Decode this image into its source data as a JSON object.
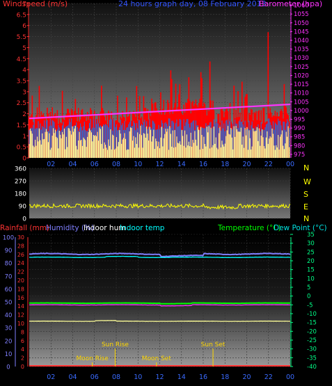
{
  "header": {
    "windspeed_label": "Windspeed (m/s)",
    "title": "24 hours graph day, 08 February 2013",
    "barometer_label": "Barometer (hpa)"
  },
  "bottom_header": {
    "rainfall": "Rainfall (mm)",
    "humidity": "Humidity (%)",
    "indoor_hum": "Indoor hum",
    "indoor_temp": "Indoor temp",
    "temperature": "Temperature (°C)",
    "dew_point": "Dew Point (°C)"
  },
  "colors": {
    "wind_red": "#ff0000",
    "wind_avg": "#ffff99",
    "wind_blue": "#3366cc",
    "barometer": "#ff33ff",
    "direction": "#ffff00",
    "humidity": "#8080ff",
    "indoor_hum": "#ffffff",
    "indoor_temp": "#00ffff",
    "temperature": "#00ff00",
    "dew_point": "#00e0e0",
    "rain": "#ff3333"
  },
  "chart_data": [
    {
      "type": "line",
      "name": "wind-barometer",
      "x_ticks": [
        "02",
        "04",
        "06",
        "08",
        "10",
        "12",
        "14",
        "16",
        "18",
        "20",
        "22",
        "00"
      ],
      "y_left_ticks": [
        "0",
        "0.5",
        "1",
        "1.5",
        "2",
        "2.5",
        "3",
        "3.5",
        "4",
        "4.5",
        "5",
        "5.5",
        "6",
        "6.5",
        "7"
      ],
      "y_left_range": [
        0,
        7
      ],
      "y_right_ticks": [
        "975",
        "980",
        "985",
        "990",
        "995",
        "1000",
        "1005",
        "1010",
        "1015",
        "1020",
        "1025",
        "1030",
        "1035",
        "1040",
        "1045",
        "1050",
        "1055",
        "1060"
      ],
      "y_right_range": [
        973,
        1061
      ],
      "barometer_start": 995.5,
      "barometer_end": 1003.5,
      "gust_level_typical": 1.9,
      "average_level_typical": 0.8,
      "peak_gust": 5.7
    },
    {
      "type": "line",
      "name": "wind-direction",
      "x_ticks": [
        "02",
        "04",
        "06",
        "08",
        "10",
        "12",
        "14",
        "16",
        "18",
        "20",
        "22",
        "00"
      ],
      "y_ticks": [
        "0",
        "90",
        "180",
        "270",
        "360"
      ],
      "y_range": [
        0,
        360
      ],
      "compass": [
        "N",
        "W",
        "S",
        "E",
        "N"
      ],
      "direction_typical": 90
    },
    {
      "type": "line",
      "name": "temperature-humidity",
      "x_ticks": [
        "02",
        "04",
        "06",
        "08",
        "10",
        "12",
        "14",
        "16",
        "18",
        "20",
        "22",
        "00"
      ],
      "y_left_ticks": [
        "0",
        "10",
        "20",
        "30",
        "40",
        "50",
        "60",
        "70",
        "80",
        "90",
        "100"
      ],
      "y_rain_ticks": [
        "0",
        "2",
        "4",
        "6",
        "8",
        "10",
        "12",
        "14",
        "16",
        "18",
        "20",
        "22",
        "24",
        "26",
        "28",
        "30"
      ],
      "y_right_ticks": [
        "-40",
        "-35",
        "-30",
        "-25",
        "-20",
        "-15",
        "-10",
        "-5",
        "0",
        "5",
        "10",
        "15",
        "20",
        "25",
        "30",
        "35"
      ],
      "y_right_range": [
        -40,
        35
      ],
      "humidity_level": 87,
      "indoor_hum_level": 35,
      "indoor_temp_level": 22,
      "temperature_level": -4,
      "dew_point_level": -5,
      "rain_total": 0,
      "events": [
        {
          "label": "Moon Rise",
          "hour": 5.8
        },
        {
          "label": "Sun Rise",
          "hour": 7.9
        },
        {
          "label": "Moon Set",
          "hour": 11.7
        },
        {
          "label": "Sun Set",
          "hour": 16.9
        }
      ]
    }
  ]
}
